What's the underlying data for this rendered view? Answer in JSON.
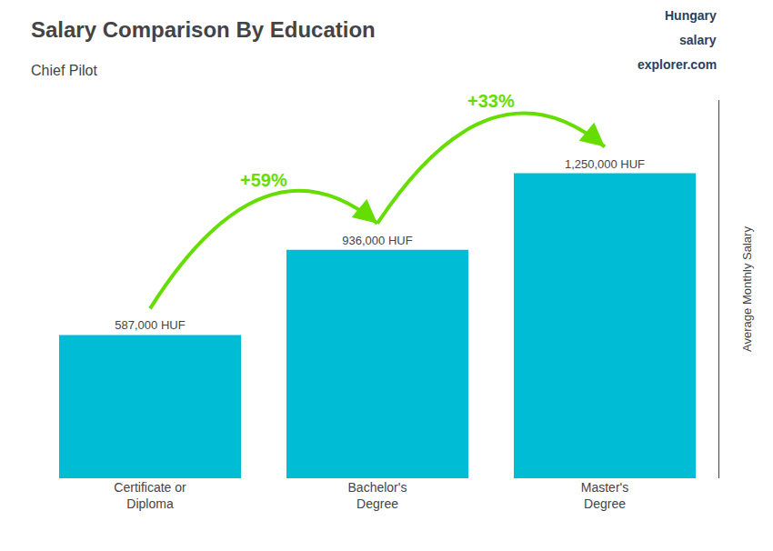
{
  "chart_data": {
    "type": "bar",
    "title": "Salary Comparison By Education",
    "subtitle": "Chief Pilot",
    "ylabel": "Average Monthly Salary",
    "categories": [
      "Certificate or\nDiploma",
      "Bachelor's\nDegree",
      "Master's\nDegree"
    ],
    "values": [
      587000,
      936000,
      1250000
    ],
    "value_labels": [
      "587,000 HUF",
      "936,000 HUF",
      "1,250,000 HUF"
    ],
    "data_labels": true,
    "color": "#00bcd4",
    "ylim": [
      0,
      1550000
    ],
    "grid": false,
    "tick_labels": "x",
    "annotations": [
      {
        "text": "+59%",
        "from": 0,
        "to": 1,
        "color": "#66dd00"
      },
      {
        "text": "+33%",
        "from": 1,
        "to": 2,
        "color": "#66dd00"
      },
      {
        "text": "Hungary"
      },
      {
        "text": "salary"
      },
      {
        "text": "explorer.com"
      }
    ]
  }
}
